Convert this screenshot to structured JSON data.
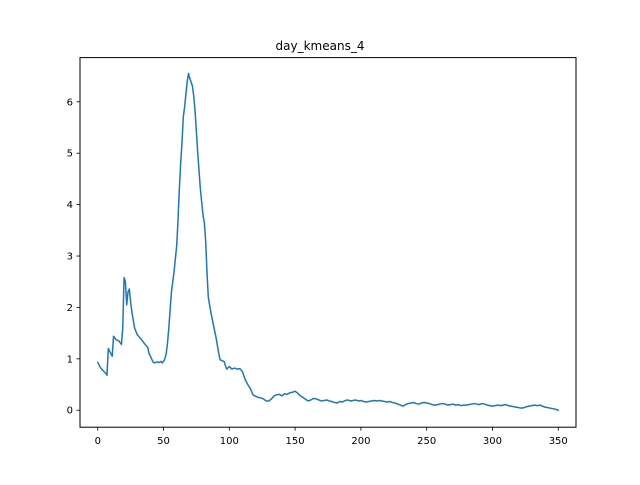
{
  "chart_data": {
    "type": "line",
    "title": "day_kmeans_4",
    "xlabel": "",
    "ylabel": "",
    "xlim": [
      -13.5,
      363.5
    ],
    "ylim": [
      -0.33,
      6.86
    ],
    "xticks": [
      0,
      50,
      100,
      150,
      200,
      250,
      300,
      350
    ],
    "yticks": [
      0,
      1,
      2,
      3,
      4,
      5,
      6
    ],
    "grid": false,
    "legend": "none",
    "series": [
      {
        "color": "#1f77b4",
        "x": [
          0,
          2,
          4,
          6,
          7,
          8,
          10,
          11,
          12,
          14,
          16,
          18,
          19,
          20,
          21,
          22,
          23,
          24,
          25,
          26,
          28,
          30,
          33,
          36,
          38,
          39,
          40,
          42,
          43,
          45,
          47,
          48,
          49,
          50,
          51,
          52,
          53,
          54,
          56,
          58,
          60,
          61,
          62,
          63,
          64,
          65,
          66,
          67,
          68,
          69,
          70,
          71,
          72,
          73,
          74,
          75,
          76,
          78,
          80,
          81,
          82,
          83,
          84,
          86,
          88,
          90,
          92,
          93,
          94,
          95,
          96,
          97,
          98,
          100,
          102,
          104,
          106,
          108,
          110,
          112,
          114,
          116,
          118,
          120,
          122,
          124,
          126,
          128,
          130,
          132,
          134,
          136,
          138,
          140,
          142,
          144,
          146,
          148,
          150,
          152,
          154,
          156,
          158,
          160,
          162,
          164,
          166,
          168,
          170,
          172,
          174,
          176,
          178,
          180,
          182,
          184,
          186,
          188,
          190,
          192,
          194,
          196,
          198,
          200,
          202,
          204,
          206,
          208,
          210,
          212,
          214,
          216,
          218,
          220,
          222,
          224,
          226,
          228,
          230,
          232,
          234,
          236,
          238,
          240,
          242,
          244,
          246,
          248,
          250,
          252,
          254,
          256,
          258,
          260,
          262,
          264,
          266,
          268,
          270,
          272,
          274,
          276,
          278,
          280,
          282,
          284,
          286,
          288,
          290,
          292,
          294,
          296,
          298,
          300,
          302,
          304,
          306,
          308,
          310,
          312,
          314,
          316,
          318,
          320,
          322,
          324,
          326,
          328,
          330,
          332,
          334,
          336,
          338,
          340,
          342,
          344,
          346,
          348,
          350
        ],
        "y": [
          0.93,
          0.83,
          0.77,
          0.72,
          0.68,
          1.2,
          1.1,
          1.05,
          1.44,
          1.37,
          1.35,
          1.28,
          1.6,
          2.58,
          2.5,
          2.05,
          2.3,
          2.36,
          2.1,
          1.9,
          1.6,
          1.47,
          1.38,
          1.28,
          1.22,
          1.1,
          1.05,
          0.94,
          0.92,
          0.94,
          0.93,
          0.95,
          0.92,
          0.95,
          1.0,
          1.1,
          1.3,
          1.6,
          2.3,
          2.7,
          3.2,
          3.7,
          4.3,
          4.8,
          5.2,
          5.7,
          5.9,
          6.15,
          6.4,
          6.55,
          6.45,
          6.38,
          6.3,
          6.1,
          5.8,
          5.4,
          5.0,
          4.3,
          3.8,
          3.65,
          3.3,
          2.7,
          2.2,
          1.9,
          1.65,
          1.4,
          1.1,
          0.98,
          0.97,
          0.96,
          0.95,
          0.87,
          0.8,
          0.85,
          0.8,
          0.82,
          0.8,
          0.81,
          0.75,
          0.6,
          0.5,
          0.42,
          0.3,
          0.27,
          0.25,
          0.24,
          0.22,
          0.18,
          0.18,
          0.22,
          0.28,
          0.3,
          0.31,
          0.28,
          0.32,
          0.31,
          0.34,
          0.35,
          0.37,
          0.33,
          0.28,
          0.25,
          0.21,
          0.18,
          0.2,
          0.23,
          0.22,
          0.2,
          0.18,
          0.19,
          0.2,
          0.18,
          0.17,
          0.15,
          0.14,
          0.17,
          0.16,
          0.19,
          0.2,
          0.18,
          0.19,
          0.2,
          0.18,
          0.19,
          0.17,
          0.16,
          0.17,
          0.18,
          0.19,
          0.18,
          0.19,
          0.18,
          0.17,
          0.16,
          0.17,
          0.15,
          0.14,
          0.12,
          0.1,
          0.08,
          0.11,
          0.13,
          0.14,
          0.15,
          0.13,
          0.12,
          0.14,
          0.15,
          0.14,
          0.13,
          0.11,
          0.1,
          0.11,
          0.12,
          0.13,
          0.12,
          0.1,
          0.11,
          0.12,
          0.1,
          0.11,
          0.09,
          0.1,
          0.1,
          0.11,
          0.12,
          0.13,
          0.12,
          0.11,
          0.13,
          0.12,
          0.1,
          0.09,
          0.08,
          0.09,
          0.1,
          0.09,
          0.1,
          0.11,
          0.09,
          0.08,
          0.07,
          0.06,
          0.05,
          0.04,
          0.05,
          0.07,
          0.08,
          0.09,
          0.1,
          0.09,
          0.1,
          0.08,
          0.06,
          0.05,
          0.04,
          0.03,
          0.02,
          0.0
        ]
      }
    ]
  }
}
